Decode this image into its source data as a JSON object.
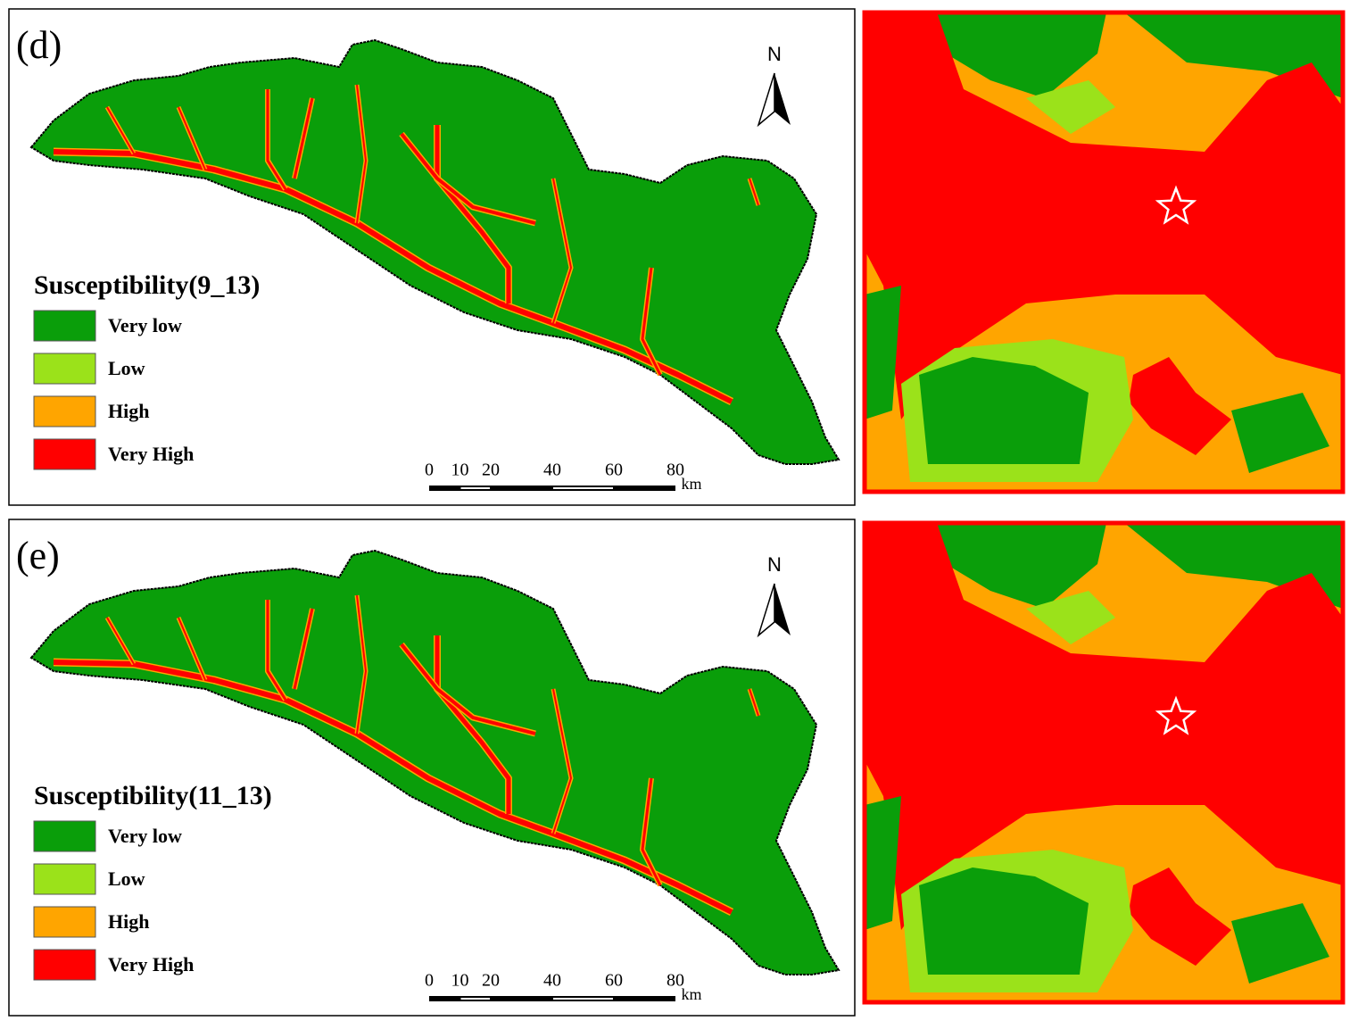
{
  "panels": [
    {
      "label": "(d)",
      "north": "N",
      "legend": {
        "title": "Susceptibility(9_13)",
        "items": [
          {
            "label": "Very low",
            "color": "#0a9e0a"
          },
          {
            "label": "Low",
            "color": "#9be21a"
          },
          {
            "label": "High",
            "color": "#ffa500"
          },
          {
            "label": "Very High",
            "color": "#ff0000"
          }
        ]
      },
      "scale": {
        "ticks": [
          0,
          10,
          20,
          40,
          60,
          80
        ],
        "unit": "km"
      }
    },
    {
      "label": "(e)",
      "north": "N",
      "legend": {
        "title": "Susceptibility(11_13)",
        "items": [
          {
            "label": "Very low",
            "color": "#0a9e0a"
          },
          {
            "label": "Low",
            "color": "#9be21a"
          },
          {
            "label": "High",
            "color": "#ffa500"
          },
          {
            "label": "Very High",
            "color": "#ff0000"
          }
        ]
      },
      "scale": {
        "ticks": [
          0,
          10,
          20,
          40,
          60,
          80
        ],
        "unit": "km"
      }
    }
  ]
}
